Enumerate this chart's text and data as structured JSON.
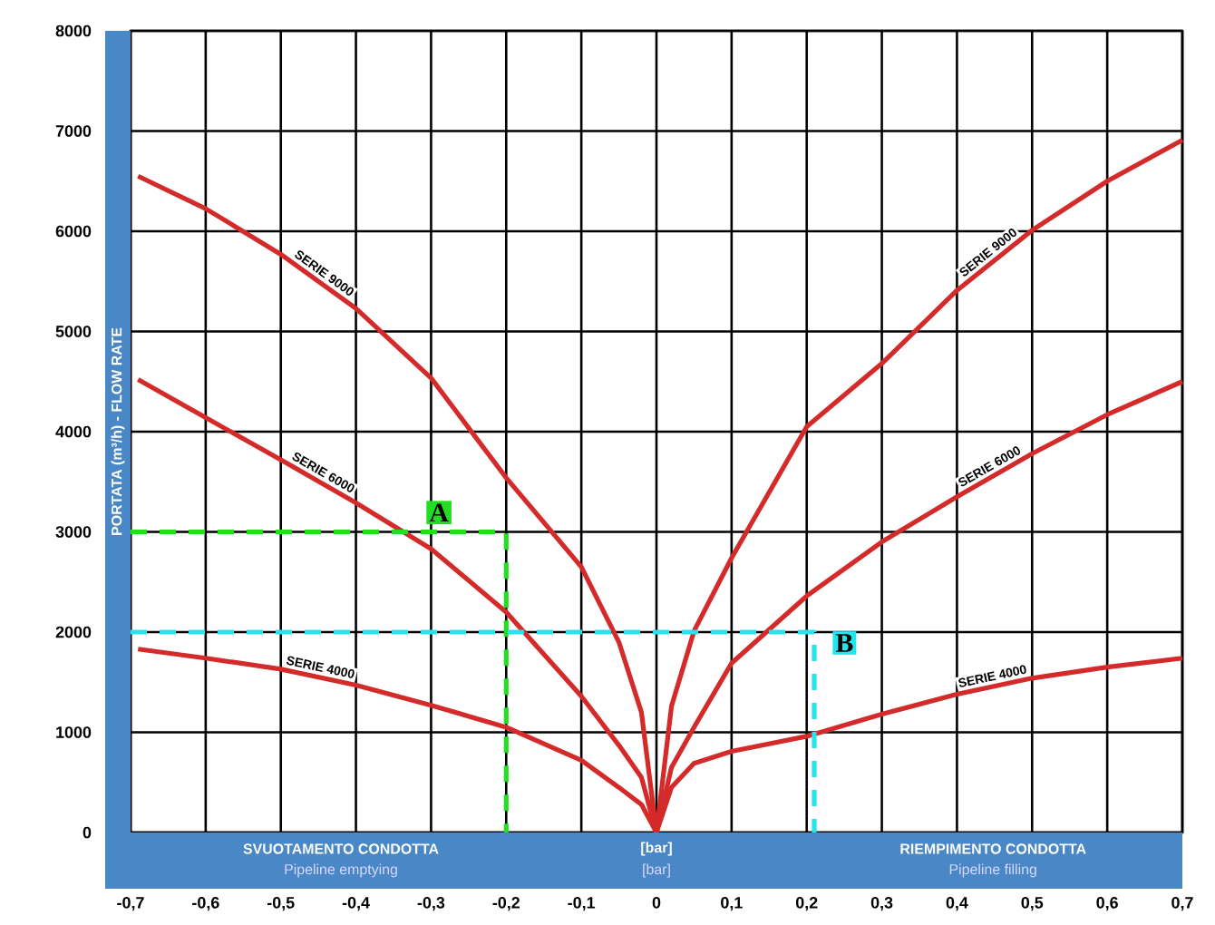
{
  "chart_data": {
    "type": "line",
    "ylabel": "PORTATA (m³/h) - FLOW RATE",
    "x": [
      -0.69,
      -0.6,
      -0.5,
      -0.4,
      -0.3,
      -0.2,
      -0.1,
      -0.05,
      -0.02,
      0,
      0.02,
      0.05,
      0.1,
      0.2,
      0.3,
      0.4,
      0.5,
      0.6,
      0.7
    ],
    "series": [
      {
        "name": "SERIE 9000",
        "color": "#d42a2a",
        "values": [
          6550,
          6225,
          5770,
          5230,
          4535,
          3540,
          2650,
          1900,
          1200,
          0,
          1260,
          2010,
          2740,
          4050,
          4680,
          5410,
          6010,
          6500,
          6910
        ]
      },
      {
        "name": "SERIE 6000",
        "color": "#d42a2a",
        "values": [
          4520,
          4140,
          3720,
          3290,
          2830,
          2200,
          1360,
          870,
          550,
          0,
          650,
          1050,
          1690,
          2360,
          2900,
          3350,
          3780,
          4170,
          4500
        ]
      },
      {
        "name": "SERIE 4000",
        "color": "#d42a2a",
        "values": [
          1830,
          1740,
          1630,
          1470,
          1270,
          1050,
          720,
          450,
          280,
          0,
          450,
          690,
          810,
          960,
          1180,
          1380,
          1540,
          1650,
          1740
        ]
      },
      {
        "color": "#22dd22",
        "line_style": "dashed",
        "x": [
          -0.7,
          -0.2,
          -0.2
        ],
        "values": [
          3000,
          3000,
          0
        ]
      },
      {
        "color": "#22e5ee",
        "line_style": "dashed",
        "x": [
          -0.7,
          0.21,
          0.21
        ],
        "values": [
          2000,
          2000,
          0
        ]
      }
    ],
    "annotations": [
      {
        "text": "A",
        "x": -0.2,
        "y": 3000
      },
      {
        "text": "B",
        "x": 0.21,
        "y": 2000
      },
      "SVUOTAMENTO CONDOTTA",
      "Pipeline emptying",
      "[bar]",
      "[bar]",
      "RIEMPIMENTO CONDOTTA",
      "Pipeline filling"
    ],
    "xlim": [
      -0.7,
      0.7
    ],
    "ylim": [
      0,
      8000
    ],
    "xticks": [
      {
        "value": -0.7,
        "label": "-0,7"
      },
      {
        "value": -0.6,
        "label": "-0,6"
      },
      {
        "value": -0.5,
        "label": "-0,5"
      },
      {
        "value": -0.4,
        "label": "-0,4"
      },
      {
        "value": -0.3,
        "label": "-0,3"
      },
      {
        "value": -0.2,
        "label": "-0,2"
      },
      {
        "value": -0.1,
        "label": "-0,1"
      },
      {
        "value": 0,
        "label": "0"
      },
      {
        "value": 0.1,
        "label": "0,1"
      },
      {
        "value": 0.2,
        "label": "0,2"
      },
      {
        "value": 0.3,
        "label": "0,3"
      },
      {
        "value": 0.4,
        "label": "0,4"
      },
      {
        "value": 0.5,
        "label": "0,5"
      },
      {
        "value": 0.6,
        "label": "0,6"
      },
      {
        "value": 0.7,
        "label": "0,7"
      }
    ],
    "yticks": [
      0,
      1000,
      2000,
      3000,
      4000,
      5000,
      6000,
      7000,
      8000
    ],
    "grid": true
  }
}
